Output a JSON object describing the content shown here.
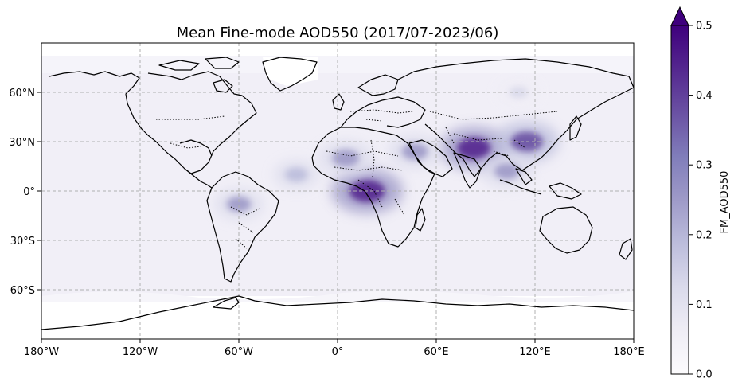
{
  "title": "Mean Fine-mode AOD550 (2017/07-2023/06)",
  "map": {
    "lon_range": [
      -180,
      180
    ],
    "lat_range": [
      -90,
      90
    ],
    "x_ticks": [
      "180°W",
      "120°W",
      "60°W",
      "0°",
      "60°E",
      "120°E",
      "180°E"
    ],
    "y_ticks": [
      "60°N",
      "30°N",
      "0°",
      "30°S",
      "60°S"
    ],
    "gridlines": true,
    "projection": "PlateCarree"
  },
  "colorbar": {
    "label": "FM_AOD550",
    "ticks": [
      "0.0",
      "0.1",
      "0.2",
      "0.3",
      "0.4",
      "0.5"
    ],
    "min": 0.0,
    "max": 0.5,
    "extend": "max",
    "colormap": "Purples",
    "colors": [
      "#fcfbfd",
      "#efedf5",
      "#dadaeb",
      "#bcbddc",
      "#9e9ac8",
      "#807dba",
      "#6a51a3",
      "#54278f",
      "#3f007d"
    ]
  },
  "hotspots": [
    {
      "region": "Central Africa",
      "lon": 18,
      "lat": 0,
      "value": 0.45
    },
    {
      "region": "Indo-Gangetic Plain",
      "lon": 83,
      "lat": 26,
      "value": 0.42
    },
    {
      "region": "East China",
      "lon": 115,
      "lat": 30,
      "value": 0.38
    },
    {
      "region": "Sahara / Sahel",
      "lon": 5,
      "lat": 20,
      "value": 0.28
    },
    {
      "region": "Arabian Peninsula",
      "lon": 47,
      "lat": 24,
      "value": 0.26
    },
    {
      "region": "Amazon",
      "lon": -60,
      "lat": -8,
      "value": 0.22
    },
    {
      "region": "Southeast Asia",
      "lon": 103,
      "lat": 12,
      "value": 0.25
    },
    {
      "region": "Tropical Atlantic outflow",
      "lon": -25,
      "lat": 10,
      "value": 0.18
    },
    {
      "region": "Siberia",
      "lon": 110,
      "lat": 60,
      "value": 0.12
    }
  ]
}
